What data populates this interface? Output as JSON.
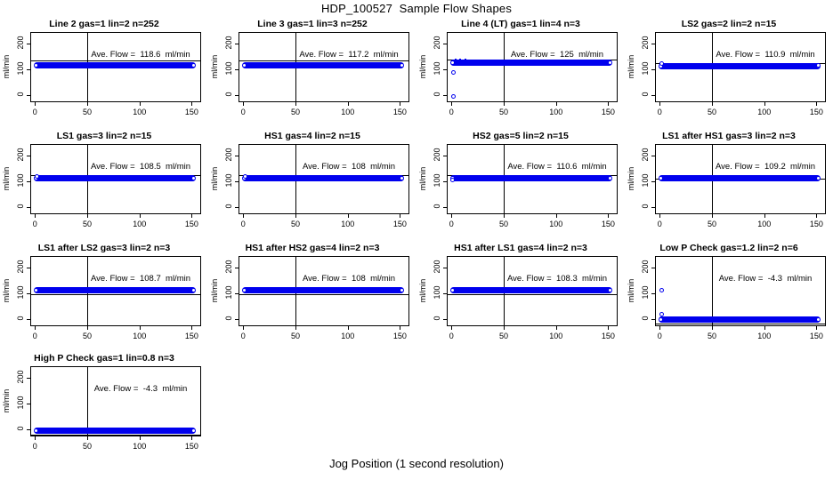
{
  "figure": {
    "title": "HDP_100527  Sample Flow Shapes",
    "xlabel": "Jog Position (1 second resolution)",
    "ylabel": "ml/min",
    "colors": {
      "point_blue": "#0000EE",
      "axis": "#000000",
      "background": "#FFFFFF"
    }
  },
  "axes": {
    "x_ticks": [
      0,
      50,
      100,
      150
    ],
    "y_ticks": [
      0,
      100,
      200
    ],
    "x_range": [
      -4.5,
      159
    ],
    "y_range": [
      -27,
      243
    ],
    "vline_x": 50
  },
  "chart_data": {
    "type": "scatter",
    "title": "HDP_100527  Sample Flow Shapes",
    "xlabel": "Jog Position (1 second resolution)",
    "ylabel": "ml/min",
    "x_ticks": [
      0,
      50,
      100,
      150
    ],
    "y_ticks": [
      0,
      100,
      200
    ],
    "subplots": [
      {
        "title": "Line 2 gas=1 lin=2 n=252",
        "ave_flow": 118.6,
        "ave_label": "Ave. Flow =  118.6  ml/min",
        "band": {
          "x_start": 1,
          "x_end": 152,
          "center": 115,
          "half_height_units": 12
        },
        "ref_line": 132,
        "outliers": [],
        "start_cluster": []
      },
      {
        "title": "Line 3 gas=1 lin=3 n=252",
        "ave_flow": 117.2,
        "ave_label": "Ave. Flow =  117.2  ml/min",
        "band": {
          "x_start": 1,
          "x_end": 152,
          "center": 115,
          "half_height_units": 12
        },
        "ref_line": 132,
        "outliers": [],
        "start_cluster": []
      },
      {
        "title": "Line 4 (LT) gas=1 lin=4 n=3",
        "ave_flow": 125,
        "ave_label": "Ave. Flow =  125  ml/min",
        "band": {
          "x_start": 1,
          "x_end": 152,
          "center": 125,
          "half_height_units": 12
        },
        "ref_line": 138,
        "outliers": [
          {
            "x": 2,
            "y": -5
          },
          {
            "x": 2,
            "y": 88
          }
        ],
        "start_cluster": [
          {
            "x": 3,
            "y": 131
          },
          {
            "x": 4,
            "y": 137
          },
          {
            "x": 6,
            "y": 134
          },
          {
            "x": 8,
            "y": 138
          },
          {
            "x": 10,
            "y": 133
          },
          {
            "x": 13,
            "y": 136
          }
        ]
      },
      {
        "title": "LS2 gas=2 lin=2 n=15",
        "ave_flow": 110.9,
        "ave_label": "Ave. Flow =  110.9  ml/min",
        "band": {
          "x_start": 1,
          "x_end": 152,
          "center": 110,
          "half_height_units": 12
        },
        "ref_line": 123,
        "outliers": [
          {
            "x": 2,
            "y": 120
          },
          {
            "x": 152,
            "y": 114
          }
        ],
        "start_cluster": []
      },
      {
        "title": "LS1 gas=3 lin=2 n=15",
        "ave_flow": 108.5,
        "ave_label": "Ave. Flow =  108.5  ml/min",
        "band": {
          "x_start": 1,
          "x_end": 152,
          "center": 110,
          "half_height_units": 12
        },
        "ref_line": 122,
        "outliers": [
          {
            "x": 2,
            "y": 119
          }
        ],
        "start_cluster": []
      },
      {
        "title": "HS1 gas=4 lin=2 n=15",
        "ave_flow": 108,
        "ave_label": "Ave. Flow =  108  ml/min",
        "band": {
          "x_start": 1,
          "x_end": 152,
          "center": 110,
          "half_height_units": 12
        },
        "ref_line": 122,
        "outliers": [
          {
            "x": 2,
            "y": 118
          }
        ],
        "start_cluster": []
      },
      {
        "title": "HS2 gas=5 lin=2 n=15",
        "ave_flow": 110.6,
        "ave_label": "Ave. Flow =  110.6  ml/min",
        "band": {
          "x_start": 1,
          "x_end": 152,
          "center": 110,
          "half_height_units": 12
        },
        "ref_line": 122,
        "outliers": [
          {
            "x": 1,
            "y": 104
          }
        ],
        "start_cluster": []
      },
      {
        "title": "LS1 after HS1 gas=3 lin=2 n=3",
        "ave_flow": 109.2,
        "ave_label": "Ave. Flow =  109.2  ml/min",
        "band": {
          "x_start": 1,
          "x_end": 152,
          "center": 110,
          "half_height_units": 12
        },
        "ref_line": 110,
        "outliers": [],
        "start_cluster": []
      },
      {
        "title": "LS1 after LS2 gas=3 lin=2 n=3",
        "ave_flow": 108.7,
        "ave_label": "Ave. Flow =  108.7  ml/min",
        "band": {
          "x_start": 1,
          "x_end": 152,
          "center": 110,
          "half_height_units": 12
        },
        "ref_line": 97,
        "outliers": [],
        "start_cluster": []
      },
      {
        "title": "HS1 after HS2 gas=4 lin=2 n=3",
        "ave_flow": 108,
        "ave_label": "Ave. Flow =  108  ml/min",
        "band": {
          "x_start": 1,
          "x_end": 152,
          "center": 110,
          "half_height_units": 12
        },
        "ref_line": 97,
        "outliers": [],
        "start_cluster": []
      },
      {
        "title": "HS1 after LS1 gas=4 lin=2 n=3",
        "ave_flow": 108.3,
        "ave_label": "Ave. Flow =  108.3  ml/min",
        "band": {
          "x_start": 1,
          "x_end": 152,
          "center": 110,
          "half_height_units": 12
        },
        "ref_line": 97,
        "outliers": [],
        "start_cluster": []
      },
      {
        "title": "Low P Check gas=1.2 lin=2 n=6",
        "ave_flow": -4.3,
        "ave_label": "Ave. Flow =  -4.3  ml/min",
        "band": {
          "x_start": 1,
          "x_end": 152,
          "center": -2,
          "half_height_units": 12
        },
        "ref_line": -16,
        "outliers": [
          {
            "x": 2,
            "y": 110
          },
          {
            "x": 2,
            "y": 20
          }
        ],
        "start_cluster": []
      },
      {
        "title": "High P Check gas=1 lin=0.8 n=3",
        "ave_flow": -4.3,
        "ave_label": "Ave. Flow =  -4.3  ml/min",
        "band": {
          "x_start": 1,
          "x_end": 152,
          "center": -5,
          "half_height_units": 12
        },
        "ref_line": -20,
        "outliers": [],
        "start_cluster": []
      }
    ]
  }
}
